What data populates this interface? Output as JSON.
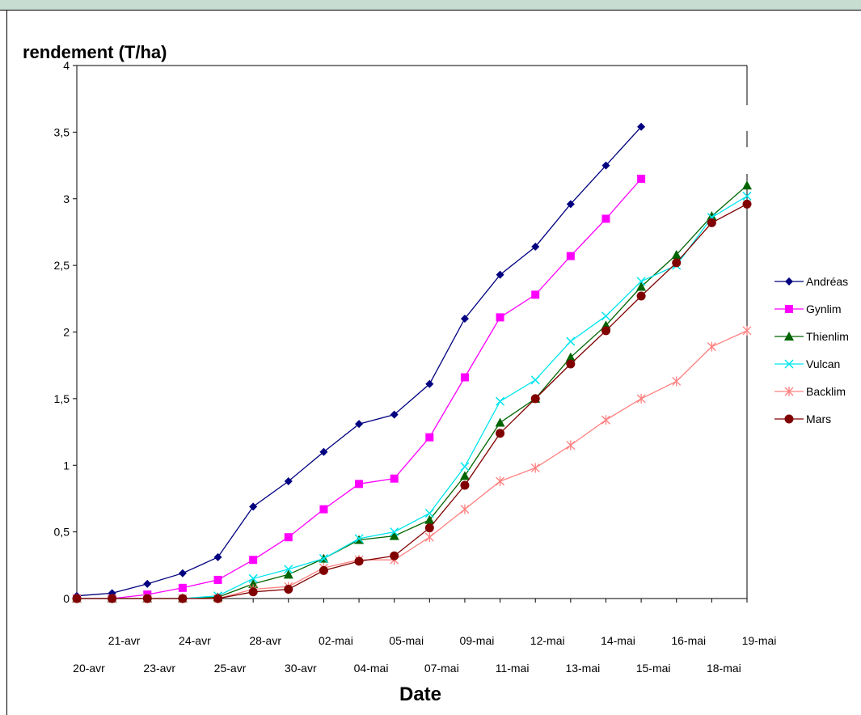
{
  "chart_data": {
    "type": "line",
    "title": "",
    "ylabel": "rendement (T/ha)",
    "xlabel": "Date",
    "ylim": [
      0,
      4
    ],
    "y_ticks": [
      "0",
      "0,5",
      "1",
      "1,5",
      "2",
      "2,5",
      "3",
      "3,5",
      "4"
    ],
    "y_tick_values": [
      0,
      0.5,
      1,
      1.5,
      2,
      2.5,
      3,
      3.5,
      4
    ],
    "grid": false,
    "legend_position": "right",
    "categories": [
      "20-avr",
      "21-avr",
      "23-avr",
      "24-avr",
      "25-avr",
      "28-avr",
      "30-avr",
      "02-mai",
      "04-mai",
      "05-mai",
      "07-mai",
      "09-mai",
      "11-mai",
      "12-mai",
      "13-mai",
      "14-mai",
      "15-mai",
      "16-mai",
      "18-mai",
      "19-mai"
    ],
    "series": [
      {
        "name": "Andréas",
        "color": "#000080",
        "marker": "diamond",
        "values": [
          0.02,
          0.04,
          0.11,
          0.19,
          0.31,
          0.69,
          0.88,
          1.1,
          1.31,
          1.38,
          1.61,
          2.1,
          2.43,
          2.64,
          2.96,
          3.25,
          3.54,
          null,
          null,
          null
        ]
      },
      {
        "name": "Gynlim",
        "color": "#ff00ff",
        "marker": "square",
        "values": [
          0,
          0,
          0.03,
          0.08,
          0.14,
          0.29,
          0.46,
          0.67,
          0.86,
          0.9,
          1.21,
          1.66,
          2.11,
          2.28,
          2.57,
          2.85,
          3.15,
          null,
          null,
          null
        ]
      },
      {
        "name": "Thienlim",
        "color": "#006400",
        "marker": "triangle",
        "values": [
          0,
          0,
          0,
          0,
          0.01,
          0.11,
          0.18,
          0.3,
          0.44,
          0.47,
          0.59,
          0.92,
          1.32,
          1.5,
          1.81,
          2.05,
          2.34,
          2.58,
          2.87,
          3.1
        ]
      },
      {
        "name": "Vulcan",
        "color": "#00e5ee",
        "marker": "x",
        "values": [
          0,
          0,
          0,
          0,
          0.02,
          0.15,
          0.22,
          0.3,
          0.45,
          0.5,
          0.64,
          0.99,
          1.48,
          1.64,
          1.93,
          2.12,
          2.38,
          2.5,
          2.86,
          3.02
        ]
      },
      {
        "name": "Backlim",
        "color": "#ff8080",
        "marker": "asterisk",
        "values": [
          0,
          0,
          0,
          0,
          0,
          0.07,
          0.09,
          0.23,
          0.29,
          0.29,
          0.46,
          0.67,
          0.88,
          0.98,
          1.15,
          1.34,
          1.5,
          1.63,
          1.89,
          2.01
        ]
      },
      {
        "name": "Mars",
        "color": "#800000",
        "marker": "circle",
        "values": [
          0,
          0,
          0,
          0,
          0,
          0.05,
          0.07,
          0.21,
          0.28,
          0.32,
          0.53,
          0.85,
          1.24,
          1.5,
          1.76,
          2.01,
          2.27,
          2.52,
          2.82,
          2.96
        ]
      }
    ]
  }
}
